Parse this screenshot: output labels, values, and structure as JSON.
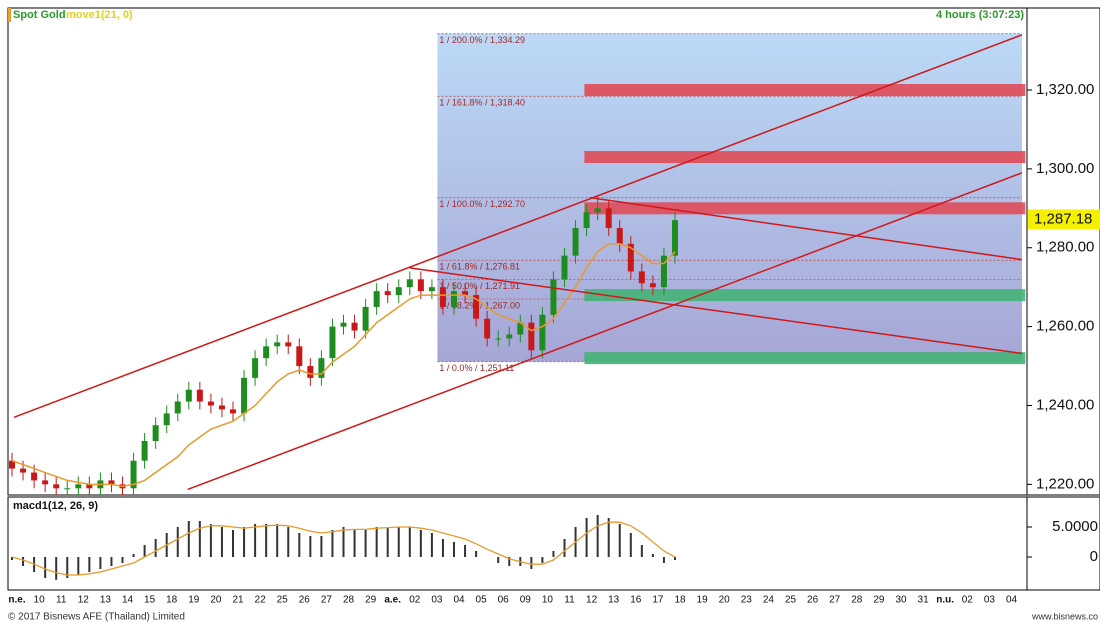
{
  "chart_data": {
    "type": "candlestick",
    "title": "Spot Gold",
    "indicator": "move1(21, 0)",
    "timeframe": "4 hours (3:07:23)",
    "x_labels": [
      "n.e.",
      "10",
      "11",
      "12",
      "13",
      "14",
      "15",
      "18",
      "19",
      "20",
      "21",
      "22",
      "25",
      "26",
      "27",
      "28",
      "29",
      "a.e.",
      "02",
      "03",
      "04",
      "05",
      "06",
      "09",
      "10",
      "11",
      "12",
      "13",
      "16",
      "17",
      "18",
      "19",
      "20",
      "23",
      "24",
      "25",
      "26",
      "27",
      "28",
      "29",
      "30",
      "31",
      "n.u.",
      "02",
      "03",
      "04"
    ],
    "ylim": [
      1217.3,
      1340.8
    ],
    "yticks": [
      {
        "value": 1220,
        "label": "1,220.00"
      },
      {
        "value": 1240,
        "label": "1,240.00"
      },
      {
        "value": 1260,
        "label": "1,260.00"
      },
      {
        "value": 1280,
        "label": "1,280.00"
      },
      {
        "value": 1300,
        "label": "1,300.00"
      },
      {
        "value": 1320,
        "label": "1,320.00"
      }
    ],
    "candles": {
      "color_up": "#1e8c1e",
      "color_down": "#c81818",
      "open": [
        1226,
        1224,
        1223,
        1221,
        1220,
        1219,
        1219,
        1220,
        1219,
        1221,
        1220,
        1219,
        1226,
        1231,
        1235,
        1238,
        1241,
        1244,
        1241,
        1240,
        1239,
        1238,
        1247,
        1252,
        1255,
        1256,
        1255,
        1250,
        1247,
        1252,
        1260,
        1261,
        1259,
        1265,
        1269,
        1268,
        1270,
        1272,
        1269,
        1270,
        1265,
        1269,
        1268,
        1262,
        1257,
        1257,
        1258,
        1261,
        1254,
        1263,
        1272,
        1278,
        1285,
        1289,
        1290,
        1285,
        1281,
        1274,
        1271,
        1270,
        1278
      ],
      "high": [
        1228,
        1226,
        1225,
        1223,
        1222,
        1221,
        1222,
        1222,
        1223,
        1223,
        1222,
        1228,
        1233,
        1237,
        1240,
        1243,
        1246,
        1246,
        1243,
        1242,
        1241,
        1249,
        1254,
        1257,
        1258,
        1258,
        1257,
        1252,
        1254,
        1262,
        1263,
        1263,
        1267,
        1271,
        1271,
        1272,
        1274,
        1274,
        1272,
        1272,
        1271,
        1271,
        1270,
        1264,
        1259,
        1260,
        1263,
        1263,
        1265,
        1274,
        1280,
        1287,
        1291,
        1293,
        1292,
        1287,
        1283,
        1276,
        1273,
        1280,
        1289
      ],
      "low": [
        1222,
        1221,
        1219,
        1218,
        1217,
        1217,
        1217,
        1217,
        1217,
        1218,
        1217,
        1217,
        1224,
        1229,
        1233,
        1236,
        1239,
        1239,
        1238,
        1237,
        1236,
        1236,
        1245,
        1250,
        1253,
        1253,
        1248,
        1245,
        1245,
        1250,
        1258,
        1257,
        1257,
        1263,
        1266,
        1266,
        1268,
        1267,
        1267,
        1263,
        1263,
        1266,
        1260,
        1255,
        1255,
        1255,
        1256,
        1252,
        1252,
        1261,
        1270,
        1276,
        1283,
        1287,
        1283,
        1279,
        1272,
        1269,
        1268,
        1268,
        1276
      ],
      "close": [
        1224,
        1223,
        1221,
        1220,
        1219,
        1219,
        1220,
        1219,
        1221,
        1220,
        1219,
        1226,
        1231,
        1235,
        1238,
        1241,
        1244,
        1241,
        1240,
        1239,
        1238,
        1247,
        1252,
        1255,
        1256,
        1255,
        1250,
        1247,
        1252,
        1260,
        1261,
        1259,
        1265,
        1269,
        1268,
        1270,
        1272,
        1269,
        1270,
        1265,
        1269,
        1268,
        1262,
        1257,
        1257,
        1258,
        1261,
        1254,
        1263,
        1272,
        1278,
        1285,
        1289,
        1290,
        1285,
        1281,
        1274,
        1271,
        1270,
        1278,
        1287
      ]
    },
    "moving_average": {
      "color": "#e89a2c",
      "values": [
        1226,
        1225,
        1224,
        1223,
        1222,
        1221,
        1220.5,
        1220,
        1220,
        1220,
        1219.5,
        1220,
        1221,
        1223,
        1225,
        1227,
        1230,
        1232,
        1234,
        1235,
        1236,
        1238,
        1240,
        1243,
        1246,
        1248,
        1249,
        1248,
        1248,
        1251,
        1253,
        1255,
        1258,
        1261,
        1263,
        1265,
        1267,
        1268,
        1268,
        1268,
        1268,
        1268,
        1267,
        1265,
        1263,
        1262,
        1261,
        1259,
        1260,
        1262,
        1266,
        1270,
        1275,
        1279,
        1281,
        1281,
        1280,
        1278,
        1276,
        1276,
        1279
      ]
    },
    "fibonacci": {
      "x": [
        38.5,
        91.4
      ],
      "color": "#c05050",
      "levels": [
        {
          "value": 1334.29,
          "label": "1 / 200.0% / 1,334.29"
        },
        {
          "value": 1318.4,
          "label": "1 / 161.8% / 1,318.40"
        },
        {
          "value": 1292.7,
          "label": "1 / 100.0% / 1,292.70"
        },
        {
          "value": 1276.81,
          "label": "1 / 61.8% / 1,276.81"
        },
        {
          "value": 1271.91,
          "label": "1 / 50.0% / 1,271.91"
        },
        {
          "value": 1267.0,
          "label": "1 / 38.2% / 1,267.00"
        },
        {
          "value": 1251.11,
          "label": "1 / 0.0% / 1,251.11"
        }
      ]
    },
    "zones": [
      {
        "value": 1320,
        "color": "#e04a58",
        "x": [
          51.8,
          91.7
        ]
      },
      {
        "value": 1303,
        "color": "#e04a58",
        "x": [
          51.8,
          91.7
        ]
      },
      {
        "value": 1290,
        "color": "#e04a58",
        "x": [
          51.8,
          91.7
        ]
      },
      {
        "value": 1268,
        "color": "#45b377",
        "x": [
          51.8,
          91.7
        ]
      },
      {
        "value": 1252,
        "color": "#45b377",
        "x": [
          51.8,
          91.7
        ]
      }
    ],
    "trend_lines": [
      {
        "color": "#d01818",
        "x": [
          0.18,
          91.4
        ],
        "y": [
          1237.0,
          1334.0
        ]
      },
      {
        "color": "#d01818",
        "x": [
          15.9,
          91.4
        ],
        "y": [
          1218.7,
          1299.0
        ]
      },
      {
        "color": "#d01818",
        "x": [
          52.3,
          91.4
        ],
        "y": [
          1292.7,
          1277.0
        ]
      },
      {
        "color": "#d01818",
        "x": [
          36.0,
          91.4
        ],
        "y": [
          1274.9,
          1253.2
        ]
      }
    ],
    "last_price": {
      "value": 1287.18,
      "label": "1,287.18"
    },
    "macd": {
      "title": "macd1(12, 26, 9)",
      "ylim": [
        -5.5,
        10
      ],
      "yticks": [
        {
          "value": 5,
          "label": "5.0000"
        },
        0
      ],
      "histogram_color": "#333333",
      "signal_color": "#e89a2c",
      "histogram": [
        -0.5,
        -1.5,
        -2.5,
        -3.5,
        -3.8,
        -3.5,
        -3,
        -2.5,
        -2,
        -1.5,
        -1,
        0.5,
        2,
        3,
        4,
        5,
        6,
        6,
        5.5,
        5,
        4.5,
        5,
        5.5,
        5.5,
        5.5,
        5,
        4,
        3.5,
        3.5,
        4.5,
        5,
        4.5,
        4.5,
        5,
        5,
        5,
        5,
        4.5,
        4,
        3,
        2.5,
        2,
        1,
        0,
        -1,
        -1.5,
        -1.5,
        -2,
        -1,
        1,
        3,
        5,
        6.5,
        7,
        6.5,
        5.5,
        4,
        2,
        0.5,
        -1,
        -0.5
      ],
      "signal": [
        0,
        -0.5,
        -1.2,
        -2,
        -2.6,
        -3,
        -3,
        -2.8,
        -2.5,
        -2,
        -1.5,
        -1,
        0,
        1,
        2,
        3,
        4,
        4.8,
        5.2,
        5.2,
        5,
        4.8,
        5,
        5.2,
        5.3,
        5.2,
        4.8,
        4.3,
        4,
        4.2,
        4.5,
        4.6,
        4.6,
        4.8,
        4.9,
        5,
        5,
        4.8,
        4.5,
        4,
        3.5,
        3,
        2.2,
        1.3,
        0.5,
        -0.3,
        -0.8,
        -1.2,
        -1.2,
        -0.5,
        1,
        2.5,
        4,
        5.2,
        5.8,
        5.8,
        5.2,
        4,
        2.5,
        1,
        0
      ]
    },
    "footer": "© 2017 Bisnews AFE (Thailand) Limited",
    "website": "www.bisnews.co"
  }
}
